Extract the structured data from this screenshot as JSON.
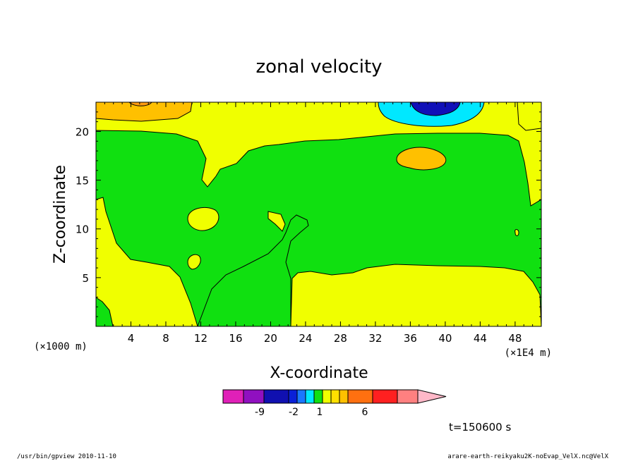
{
  "chart_data": {
    "type": "heatmap",
    "title": "zonal velocity",
    "xlabel": "X-coordinate",
    "ylabel": "Z-coordinate",
    "x_unit_label": "(×1E4 m)",
    "y_unit_label": "(×1000 m)",
    "xlim": [
      0,
      51
    ],
    "ylim": [
      0,
      23
    ],
    "x_ticks": [
      4,
      8,
      12,
      16,
      20,
      24,
      28,
      32,
      36,
      40,
      44,
      48
    ],
    "y_ticks": [
      5,
      10,
      15,
      20
    ],
    "colorbar": {
      "levels": [
        -9,
        -2,
        1,
        6
      ],
      "colors": [
        "#e020b8",
        "#9010c0",
        "#1010b0",
        "#0a20d8",
        "#1a78ff",
        "#00e8ff",
        "#10e010",
        "#f0ff00",
        "#ffe000",
        "#ffc000",
        "#ff7010",
        "#ff2020",
        "#ff8080",
        "#ffb8c8"
      ]
    },
    "time_label": "t=150600 s",
    "footer_left": "/usr/bin/gpview   2010-11-10",
    "footer_right": "arare-earth-reikyaku2K-noEvap_VelX.nc@VelX",
    "palette": {
      "yellow": "#f0ff00",
      "green": "#10e010",
      "orange": "#ffc000",
      "cyan": "#00e8ff",
      "blue": "#1010b8"
    }
  }
}
